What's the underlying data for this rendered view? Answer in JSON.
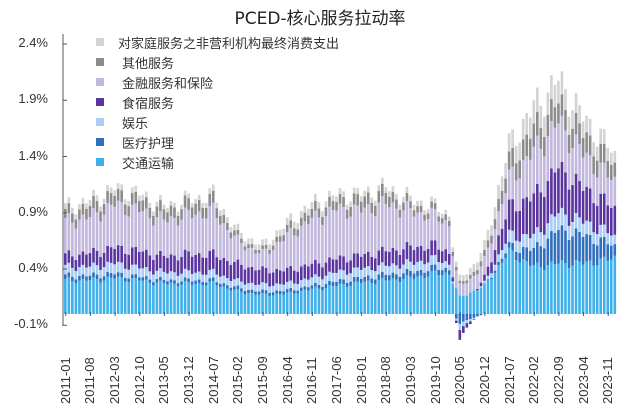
{
  "chart_data": {
    "type": "bar",
    "stacked": true,
    "title": "PCED-核心服务拉动率",
    "xlabel": "",
    "ylabel": "",
    "ylim": [
      -0.1,
      2.5
    ],
    "yticks": [
      "2.4%",
      "1.9%",
      "1.4%",
      "0.9%",
      "0.4%",
      "-0.1%"
    ],
    "ytick_values": [
      2.4,
      1.9,
      1.4,
      0.9,
      0.4,
      -0.1
    ],
    "xticks": [
      "2011-01",
      "2011-08",
      "2012-03",
      "2012-10",
      "2013-05",
      "2013-12",
      "2014-07",
      "2015-02",
      "2015-09",
      "2016-04",
      "2016-11",
      "2017-06",
      "2018-01",
      "2018-08",
      "2019-03",
      "2019-10",
      "2020-05",
      "2020-12",
      "2021-07",
      "2022-02",
      "2022-09",
      "2023-04",
      "2023-11"
    ],
    "x_start": "2011-01",
    "x_end": "2024-01",
    "frequency": "monthly",
    "legend_position": "upper-left",
    "grid": false,
    "anchor_months": [
      "2011-01",
      "2011-08",
      "2012-03",
      "2012-10",
      "2013-05",
      "2013-12",
      "2014-07",
      "2015-02",
      "2015-09",
      "2016-04",
      "2016-11",
      "2017-06",
      "2018-01",
      "2018-08",
      "2019-03",
      "2019-10",
      "2020-02",
      "2020-05",
      "2020-12",
      "2021-07",
      "2022-02",
      "2022-09",
      "2023-04",
      "2023-11",
      "2024-01"
    ],
    "series": [
      {
        "name": "交通运输",
        "color": "#3fb0ea",
        "values": [
          0.3,
          0.3,
          0.32,
          0.3,
          0.27,
          0.27,
          0.27,
          0.2,
          0.17,
          0.18,
          0.22,
          0.25,
          0.28,
          0.3,
          0.32,
          0.36,
          0.36,
          0.15,
          0.25,
          0.55,
          0.42,
          0.45,
          0.45,
          0.48,
          0.5
        ]
      },
      {
        "name": "医疗护理",
        "color": "#2f6fbe",
        "values": [
          0.04,
          0.04,
          0.04,
          0.03,
          0.03,
          0.03,
          0.03,
          0.03,
          0.03,
          0.03,
          0.03,
          0.04,
          0.04,
          0.05,
          0.05,
          0.05,
          0.04,
          -0.08,
          0.0,
          0.05,
          0.15,
          0.3,
          0.25,
          0.15,
          0.1
        ]
      },
      {
        "name": "娱乐",
        "color": "#a9cdf4",
        "values": [
          0.08,
          0.08,
          0.09,
          0.08,
          0.07,
          0.07,
          0.07,
          0.06,
          0.06,
          0.06,
          0.07,
          0.08,
          0.08,
          0.08,
          0.08,
          0.08,
          0.05,
          -0.05,
          0.02,
          0.1,
          0.12,
          0.15,
          0.12,
          0.1,
          0.08
        ]
      },
      {
        "name": "食宿服务",
        "color": "#5a35a0",
        "values": [
          0.1,
          0.12,
          0.14,
          0.15,
          0.14,
          0.16,
          0.16,
          0.15,
          0.13,
          0.12,
          0.12,
          0.12,
          0.12,
          0.13,
          0.14,
          0.12,
          0.1,
          -0.08,
          0.05,
          0.25,
          0.35,
          0.4,
          0.3,
          0.25,
          0.25
        ]
      },
      {
        "name": "金融服务和保险",
        "color": "#c2b8dd",
        "values": [
          0.3,
          0.32,
          0.38,
          0.36,
          0.32,
          0.35,
          0.38,
          0.2,
          0.14,
          0.3,
          0.4,
          0.44,
          0.4,
          0.42,
          0.32,
          0.26,
          0.25,
          0.1,
          0.15,
          0.25,
          0.4,
          0.4,
          0.3,
          0.25,
          0.25
        ]
      },
      {
        "name": "其他服务",
        "color": "#8c8c8c",
        "values": [
          0.08,
          0.1,
          0.1,
          0.1,
          0.09,
          0.1,
          0.1,
          0.04,
          0.03,
          0.06,
          0.08,
          0.08,
          0.1,
          0.1,
          0.06,
          0.05,
          0.05,
          0.02,
          0.05,
          0.15,
          0.2,
          0.18,
          0.18,
          0.15,
          0.12
        ]
      },
      {
        "name": "对家庭服务之非营利机构最终消费支出",
        "color": "#d3d3d3",
        "values": [
          0.05,
          0.05,
          0.05,
          0.05,
          0.04,
          0.04,
          0.05,
          0.05,
          0.05,
          0.06,
          0.06,
          0.05,
          0.05,
          0.05,
          0.05,
          0.04,
          0.04,
          0.05,
          0.08,
          0.15,
          0.2,
          0.2,
          0.15,
          0.12,
          0.1
        ]
      }
    ]
  },
  "legend": {
    "items": [
      {
        "label": "对家庭服务之非营利机构最终消费支出",
        "color": "#d3d3d3"
      },
      {
        "label": "其他服务",
        "color": "#8c8c8c"
      },
      {
        "label": "金融服务和保险",
        "color": "#c2b8dd"
      },
      {
        "label": "食宿服务",
        "color": "#5a35a0"
      },
      {
        "label": "娱乐",
        "color": "#a9cdf4"
      },
      {
        "label": "医疗护理",
        "color": "#2f6fbe"
      },
      {
        "label": "交通运输",
        "color": "#3fb0ea"
      }
    ]
  }
}
